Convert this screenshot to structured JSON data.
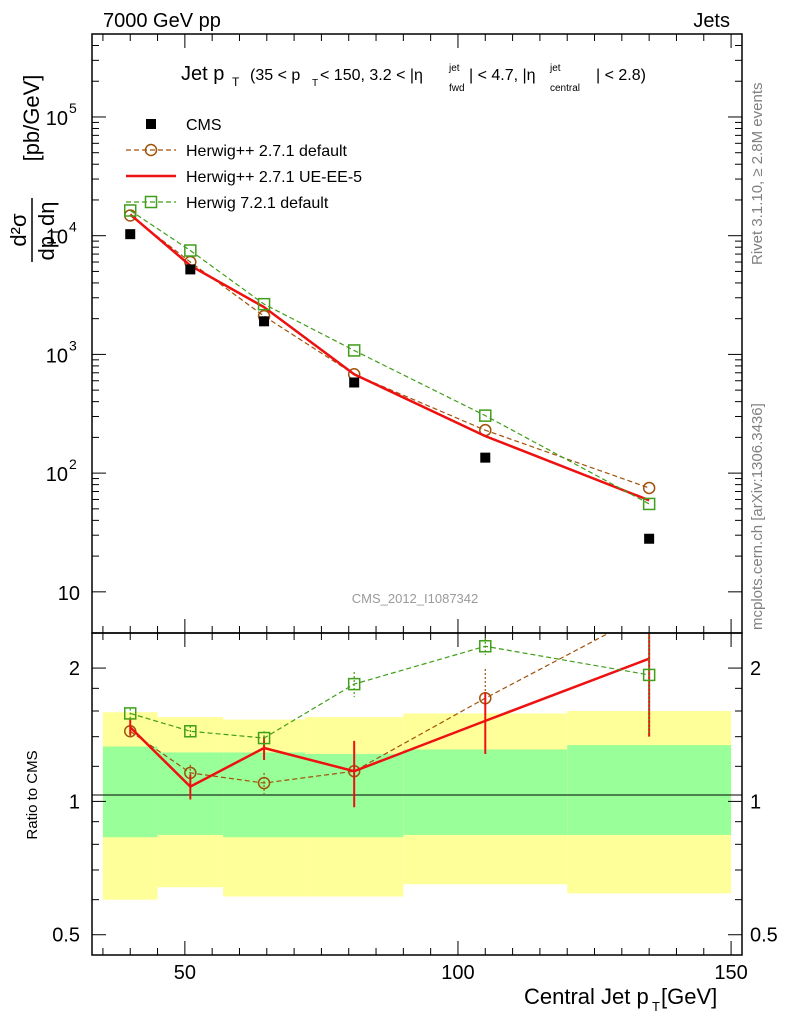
{
  "header": {
    "left": "7000 GeV pp",
    "right": "Jets"
  },
  "side_labels": {
    "top": "Rivet 3.1.10, ≥ 2.8M events",
    "bottom": "mcplots.cern.ch [arXiv:1306.3436]"
  },
  "watermark": "CMS_2012_I1087342",
  "colors": {
    "cms": "#000000",
    "h271def": "#a0520a",
    "h271ue": "#ee1111",
    "h721": "#3f9e1a",
    "band_inner": "#99ff99",
    "band_outer": "#ffff99"
  },
  "chart_data": {
    "type": "scatter",
    "title": {
      "main": "Jet p",
      "sub": "T",
      "cut_text_1": "(35 < p",
      "cut_text_2": " < 150, 3.2 < |η",
      "jet": "jet",
      "fwd": "fwd",
      "cut_text_3": "| < 4.7, |η",
      "central": "central",
      "cut_text_4": "| < 2.8)"
    },
    "xlabel": "Central Jet p_T [GeV]",
    "xlabel_main": "Central Jet p",
    "xlabel_sub": "T",
    "xlabel_unit": " [GeV]",
    "ylabel": "d²σ/dp_T dη [pb/GeV]",
    "ylabel_parts": {
      "num": "d²σ",
      "den": "dp",
      "den_sub": "T",
      "den_tail": "dη",
      "unit": "[pb/GeV]"
    },
    "ratio_ylabel": "Ratio to CMS",
    "xlim": [
      33,
      152
    ],
    "ylim": [
      4.5,
      500000
    ],
    "ylog": true,
    "ratio_ylim": [
      0.45,
      2.4
    ],
    "ratio_log": true,
    "x_ticks": [
      50,
      100,
      150
    ],
    "y_ticks": [
      {
        "v": 10,
        "base": "10",
        "exp": ""
      },
      {
        "v": 100,
        "base": "10",
        "exp": "2"
      },
      {
        "v": 1000,
        "base": "10",
        "exp": "3"
      },
      {
        "v": 10000,
        "base": "10",
        "exp": "4"
      },
      {
        "v": 100000,
        "base": "10",
        "exp": "5"
      }
    ],
    "ratio_ticks": [
      {
        "v": 0.5,
        "label": "0.5"
      },
      {
        "v": 1,
        "label": "1"
      },
      {
        "v": 2,
        "label": "2"
      }
    ],
    "bins": [
      {
        "lo": 35,
        "hi": 45,
        "x": 40
      },
      {
        "lo": 45,
        "hi": 57,
        "x": 51
      },
      {
        "lo": 57,
        "hi": 72,
        "x": 64.5
      },
      {
        "lo": 72,
        "hi": 90,
        "x": 81
      },
      {
        "lo": 90,
        "hi": 120,
        "x": 105
      },
      {
        "lo": 120,
        "hi": 150,
        "x": 135
      }
    ],
    "cms": [
      10300,
      5200,
      1900,
      580,
      135,
      28
    ],
    "band_inner": [
      [
        0.83,
        1.33
      ],
      [
        0.84,
        1.29
      ],
      [
        0.83,
        1.29
      ],
      [
        0.83,
        1.28
      ],
      [
        0.84,
        1.31
      ],
      [
        0.84,
        1.34
      ]
    ],
    "band_outer": [
      [
        0.6,
        1.59
      ],
      [
        0.64,
        1.55
      ],
      [
        0.61,
        1.53
      ],
      [
        0.61,
        1.55
      ],
      [
        0.65,
        1.58
      ],
      [
        0.62,
        1.6
      ]
    ],
    "series": [
      {
        "name": "CMS",
        "key": "cms",
        "style": "cms"
      },
      {
        "name": "Herwig++ 2.7.1 default",
        "key": "h271def",
        "style": "circle-dash",
        "values": [
          14800,
          6000,
          2100,
          680,
          230,
          75
        ],
        "ratio": [
          1.44,
          1.16,
          1.1,
          1.17,
          1.71,
          2.68
        ],
        "ratio_err": [
          0.04,
          0.05,
          0.06,
          0.08,
          0.28,
          0.5
        ]
      },
      {
        "name": "Herwig++ 2.7.1 UE-EE-5",
        "key": "h271ue",
        "style": "line",
        "values": [
          15100,
          5600,
          2500,
          680,
          205,
          59
        ],
        "ratio": [
          1.47,
          1.08,
          1.32,
          1.17,
          1.52,
          2.1
        ],
        "ratio_err": [
          0.06,
          0.07,
          0.08,
          0.2,
          0.24,
          0.7
        ]
      },
      {
        "name": "Herwig 7.2.1 default",
        "key": "h721",
        "style": "square-dash",
        "values": [
          16300,
          7500,
          2650,
          1080,
          305,
          55
        ],
        "ratio": [
          1.58,
          1.44,
          1.39,
          1.84,
          2.24,
          1.93
        ],
        "ratio_err": [
          0.04,
          0.04,
          0.05,
          0.12,
          0.1,
          0.5
        ]
      }
    ]
  }
}
